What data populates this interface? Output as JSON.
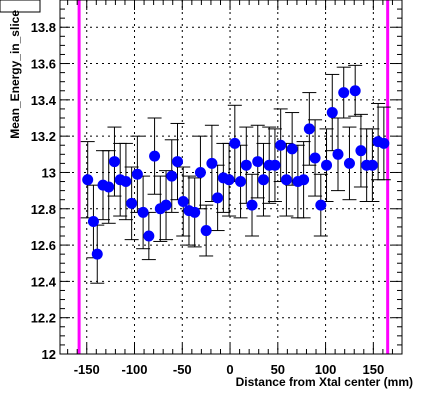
{
  "chart_data": {
    "type": "scatter",
    "title": "",
    "xlabel": "Distance from Xtal center (mm)",
    "ylabel": "Mean_Energy_in_slice",
    "xlim": [
      -178,
      180
    ],
    "ylim": [
      12.0,
      13.95
    ],
    "x_ticks": [
      -150,
      -100,
      -50,
      0,
      50,
      100,
      150
    ],
    "x_tick_labels": [
      "-150",
      "-100",
      "-50",
      "0",
      "50",
      "100",
      "150"
    ],
    "y_ticks": [
      12.0,
      12.2,
      12.4,
      12.6,
      12.8,
      13.0,
      13.2,
      13.4,
      13.6,
      13.8
    ],
    "y_tick_labels": [
      "12",
      "12.2",
      "12.4",
      "12.6",
      "12.8",
      "13",
      "13.2",
      "13.4",
      "13.6",
      "13.8"
    ],
    "grid": true,
    "vertical_lines": [
      -158,
      165
    ],
    "colors": {
      "points": "#0000ff",
      "error_bars": "#000000",
      "vertical_lines": "#ff00ff",
      "grid": "#000000"
    },
    "series": [
      {
        "x": [
          -149,
          -143,
          -139,
          -133,
          -127,
          -121,
          -115,
          -109,
          -103,
          -97,
          -91,
          -85,
          -79,
          -73,
          -67,
          -61,
          -55,
          -49,
          -43,
          -37,
          -31,
          -25,
          -19,
          -13,
          -7,
          -1,
          5,
          11,
          17,
          23,
          29,
          35,
          41,
          47,
          53,
          59,
          65,
          71,
          77,
          83,
          89,
          95,
          101,
          107,
          113,
          119,
          125,
          131,
          137,
          143,
          149,
          155,
          161
        ],
        "y": [
          12.96,
          12.73,
          12.55,
          12.93,
          12.92,
          13.06,
          12.96,
          12.95,
          12.83,
          12.99,
          12.78,
          12.65,
          13.09,
          12.8,
          12.82,
          12.98,
          13.06,
          12.84,
          12.79,
          12.78,
          13.0,
          12.68,
          13.05,
          12.86,
          12.97,
          12.96,
          13.16,
          12.95,
          13.04,
          12.82,
          13.06,
          12.96,
          13.04,
          13.04,
          13.15,
          12.96,
          13.13,
          12.95,
          12.96,
          13.24,
          13.08,
          12.82,
          13.04,
          13.33,
          13.1,
          13.44,
          13.05,
          13.45,
          13.12,
          13.04,
          13.04,
          13.17,
          13.16
        ],
        "yerr": [
          0.21,
          0.2,
          0.16,
          0.19,
          0.2,
          0.19,
          0.2,
          0.21,
          0.2,
          0.21,
          0.2,
          0.13,
          0.21,
          0.18,
          0.19,
          0.2,
          0.21,
          0.19,
          0.19,
          0.19,
          0.2,
          0.14,
          0.21,
          0.18,
          0.19,
          0.2,
          0.21,
          0.2,
          0.21,
          0.17,
          0.2,
          0.2,
          0.21,
          0.2,
          0.2,
          0.2,
          0.2,
          0.2,
          0.21,
          0.2,
          0.21,
          0.17,
          0.2,
          0.21,
          0.2,
          0.14,
          0.2,
          0.14,
          0.2,
          0.2,
          0.2,
          0.21,
          0.2
        ]
      }
    ]
  }
}
